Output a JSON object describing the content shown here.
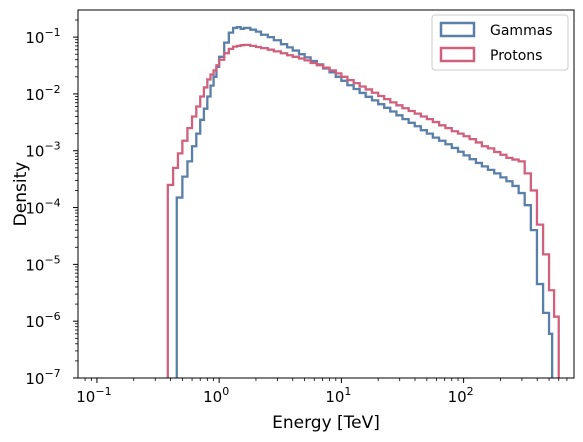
{
  "chart_data": {
    "type": "histogram",
    "xlabel": "Energy [TeV]",
    "ylabel": "Density",
    "xscale": "log",
    "yscale": "log",
    "xlim": [
      0.07,
      800
    ],
    "ylim": [
      1e-07,
      0.3
    ],
    "x_ticks": [
      {
        "value": 0.1,
        "base": "10",
        "exp": "−1"
      },
      {
        "value": 1,
        "base": "10",
        "exp": "0"
      },
      {
        "value": 10,
        "base": "10",
        "exp": "1"
      },
      {
        "value": 100,
        "base": "10",
        "exp": "2"
      }
    ],
    "y_ticks": [
      {
        "value": 1e-07,
        "base": "10",
        "exp": "−7"
      },
      {
        "value": 1e-06,
        "base": "10",
        "exp": "−6"
      },
      {
        "value": 1e-05,
        "base": "10",
        "exp": "−5"
      },
      {
        "value": 0.0001,
        "base": "10",
        "exp": "−4"
      },
      {
        "value": 0.001,
        "base": "10",
        "exp": "−3"
      },
      {
        "value": 0.01,
        "base": "10",
        "exp": "−2"
      },
      {
        "value": 0.1,
        "base": "10",
        "exp": "−1"
      }
    ],
    "legend": {
      "position": "top-right"
    },
    "series": [
      {
        "name": "Gammas",
        "color": "#5a7fa8",
        "points": [
          [
            0.45,
            0.00015
          ],
          [
            0.5,
            0.00035
          ],
          [
            0.55,
            0.00065
          ],
          [
            0.6,
            0.0012
          ],
          [
            0.65,
            0.002
          ],
          [
            0.7,
            0.0035
          ],
          [
            0.75,
            0.0055
          ],
          [
            0.8,
            0.009
          ],
          [
            0.85,
            0.014
          ],
          [
            0.9,
            0.02
          ],
          [
            0.95,
            0.03
          ],
          [
            1.0,
            0.045
          ],
          [
            1.1,
            0.08
          ],
          [
            1.2,
            0.12
          ],
          [
            1.3,
            0.145
          ],
          [
            1.4,
            0.15
          ],
          [
            1.5,
            0.14
          ],
          [
            1.6,
            0.145
          ],
          [
            1.8,
            0.135
          ],
          [
            2.0,
            0.125
          ],
          [
            2.2,
            0.11
          ],
          [
            2.5,
            0.1
          ],
          [
            2.8,
            0.088
          ],
          [
            3.2,
            0.075
          ],
          [
            3.6,
            0.066
          ],
          [
            4.0,
            0.058
          ],
          [
            4.5,
            0.05
          ],
          [
            5.0,
            0.044
          ],
          [
            5.6,
            0.038
          ],
          [
            6.3,
            0.033
          ],
          [
            7.1,
            0.028
          ],
          [
            8.0,
            0.024
          ],
          [
            9.0,
            0.02
          ],
          [
            10,
            0.017
          ],
          [
            11.2,
            0.0142
          ],
          [
            12.6,
            0.0122
          ],
          [
            14.1,
            0.0104
          ],
          [
            15.8,
            0.0089
          ],
          [
            17.8,
            0.0077
          ],
          [
            20,
            0.0066
          ],
          [
            22.4,
            0.0057
          ],
          [
            25.1,
            0.0049
          ],
          [
            28.2,
            0.0042
          ],
          [
            31.6,
            0.0036
          ],
          [
            35.5,
            0.0031
          ],
          [
            39.8,
            0.0027
          ],
          [
            44.7,
            0.0023
          ],
          [
            50,
            0.002
          ],
          [
            56,
            0.0017
          ],
          [
            63,
            0.0015
          ],
          [
            71,
            0.0013
          ],
          [
            80,
            0.00112
          ],
          [
            90,
            0.00096
          ],
          [
            100,
            0.00083
          ],
          [
            112,
            0.00071
          ],
          [
            126,
            0.00061
          ],
          [
            141,
            0.00053
          ],
          [
            158,
            0.00046
          ],
          [
            178,
            0.0004
          ],
          [
            200,
            0.00034
          ],
          [
            224,
            0.00029
          ],
          [
            251,
            0.00024
          ],
          [
            282,
            0.00018
          ],
          [
            316,
            0.00011
          ],
          [
            355,
            4e-05
          ],
          [
            398,
            4.5e-06
          ],
          [
            447,
            1.4e-06
          ],
          [
            500,
            6e-07
          ]
        ],
        "end": 530
      },
      {
        "name": "Protons",
        "color": "#d0617e",
        "points": [
          [
            0.38,
            0.00025
          ],
          [
            0.42,
            0.0005
          ],
          [
            0.46,
            0.0009
          ],
          [
            0.5,
            0.0015
          ],
          [
            0.55,
            0.0025
          ],
          [
            0.6,
            0.004
          ],
          [
            0.65,
            0.006
          ],
          [
            0.7,
            0.009
          ],
          [
            0.75,
            0.013
          ],
          [
            0.8,
            0.018
          ],
          [
            0.85,
            0.022
          ],
          [
            0.9,
            0.026
          ],
          [
            0.95,
            0.032
          ],
          [
            1.0,
            0.04
          ],
          [
            1.1,
            0.052
          ],
          [
            1.2,
            0.062
          ],
          [
            1.3,
            0.068
          ],
          [
            1.4,
            0.07
          ],
          [
            1.5,
            0.072
          ],
          [
            1.6,
            0.073
          ],
          [
            1.8,
            0.07
          ],
          [
            2.0,
            0.067
          ],
          [
            2.2,
            0.064
          ],
          [
            2.5,
            0.06
          ],
          [
            2.8,
            0.056
          ],
          [
            3.2,
            0.052
          ],
          [
            3.6,
            0.048
          ],
          [
            4.0,
            0.045
          ],
          [
            4.5,
            0.042
          ],
          [
            5.0,
            0.039
          ],
          [
            5.6,
            0.035
          ],
          [
            6.3,
            0.032
          ],
          [
            7.1,
            0.029
          ],
          [
            8.0,
            0.026
          ],
          [
            9.0,
            0.023
          ],
          [
            10,
            0.02
          ],
          [
            11.2,
            0.0175
          ],
          [
            12.6,
            0.0155
          ],
          [
            14.1,
            0.0135
          ],
          [
            15.8,
            0.012
          ],
          [
            17.8,
            0.0105
          ],
          [
            20,
            0.0092
          ],
          [
            22.4,
            0.0081
          ],
          [
            25.1,
            0.0071
          ],
          [
            28.2,
            0.0063
          ],
          [
            31.6,
            0.0056
          ],
          [
            35.5,
            0.005
          ],
          [
            39.8,
            0.0045
          ],
          [
            44.7,
            0.004
          ],
          [
            50,
            0.0036
          ],
          [
            56,
            0.0032
          ],
          [
            63,
            0.0028
          ],
          [
            71,
            0.0025
          ],
          [
            80,
            0.0022
          ],
          [
            90,
            0.002
          ],
          [
            100,
            0.0018
          ],
          [
            112,
            0.0016
          ],
          [
            126,
            0.0014
          ],
          [
            141,
            0.0012
          ],
          [
            158,
            0.0011
          ],
          [
            178,
            0.00095
          ],
          [
            200,
            0.00085
          ],
          [
            224,
            0.00075
          ],
          [
            251,
            0.0007
          ],
          [
            282,
            0.00065
          ],
          [
            316,
            0.0004
          ],
          [
            355,
            0.0002
          ],
          [
            398,
            5e-05
          ],
          [
            447,
            1.5e-05
          ],
          [
            500,
            3.5e-06
          ],
          [
            550,
            1.2e-06
          ]
        ],
        "end": 600
      }
    ]
  }
}
